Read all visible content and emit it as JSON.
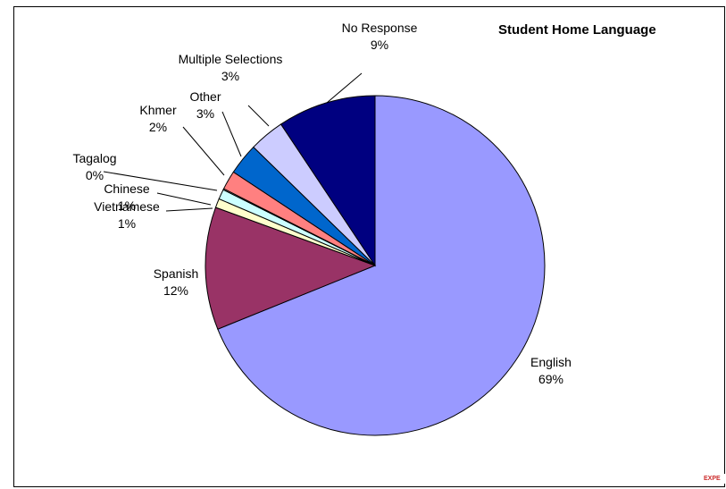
{
  "chart_data": {
    "type": "pie",
    "title": "Student Home Language",
    "slices": [
      {
        "label": "English",
        "value": 69,
        "value_label": "69%",
        "color": "#9999ff"
      },
      {
        "label": "Spanish",
        "value": 12,
        "value_label": "12%",
        "color": "#993366"
      },
      {
        "label": "Vietnamese",
        "value": 1,
        "value_label": "1%",
        "color": "#ffffcc"
      },
      {
        "label": "Chinese",
        "value": 1,
        "value_label": "1%",
        "color": "#ccffff"
      },
      {
        "label": "Tagalog",
        "value": 0,
        "value_label": "0%",
        "color": "#ffffff"
      },
      {
        "label": "Khmer",
        "value": 2,
        "value_label": "2%",
        "color": "#ff8080"
      },
      {
        "label": "Other",
        "value": 3,
        "value_label": "3%",
        "color": "#0066cc"
      },
      {
        "label": "Multiple Selections",
        "value": 3,
        "value_label": "3%",
        "color": "#ccccff"
      },
      {
        "label": "No Response",
        "value": 9,
        "value_label": "9%",
        "color": "#000080"
      }
    ],
    "legend": "none",
    "start": "top",
    "direction": "clockwise"
  },
  "watermark": "EXPE"
}
